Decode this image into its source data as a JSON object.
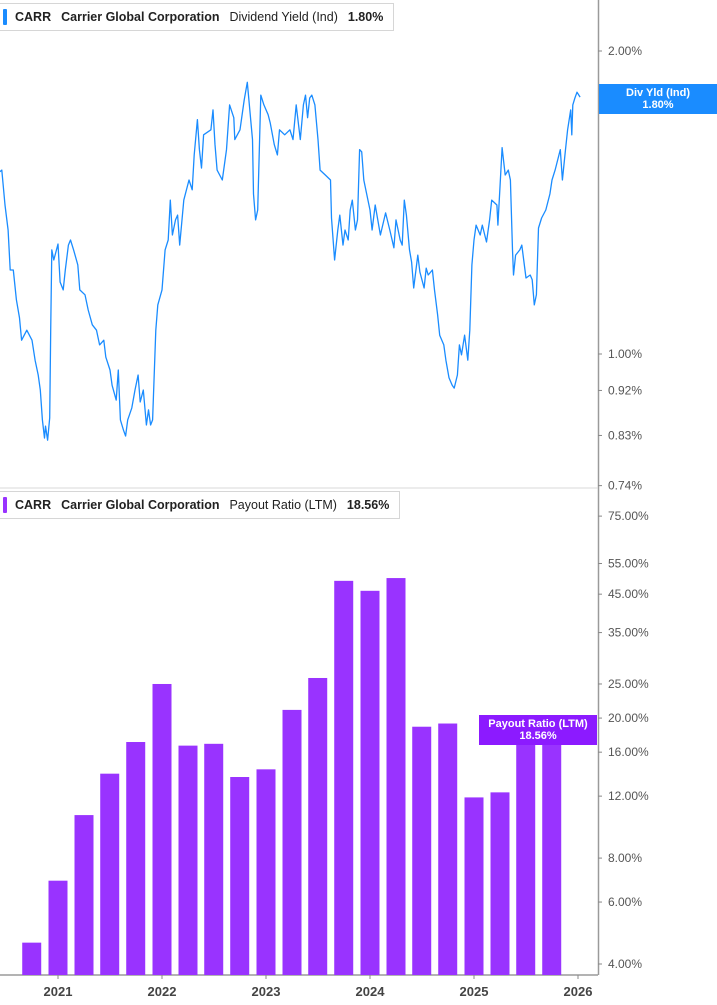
{
  "colors": {
    "yield": "#1a8cff",
    "payout": "#9933ff",
    "payout_flag": "#8c1aff"
  },
  "top_legend": {
    "ticker": "CARR",
    "company": "Carrier Global Corporation",
    "metric": "Dividend Yield (Ind)",
    "value": "1.80%"
  },
  "bottom_legend": {
    "ticker": "CARR",
    "company": "Carrier Global Corporation",
    "metric": "Payout Ratio (LTM)",
    "value": "18.56%"
  },
  "top_flag": {
    "label": "Div Yld (Ind)",
    "value": "1.80%"
  },
  "bottom_flag": {
    "label": "Payout Ratio (LTM)",
    "value": "18.56%"
  },
  "chart_data": [
    {
      "type": "line",
      "series": [
        {
          "name": "Dividend Yield (Ind)",
          "unit": "%"
        }
      ],
      "x_unit": "year",
      "y_scale": "log",
      "ylim": [
        0.74,
        2.1
      ],
      "y_ticks": [
        "2.00%",
        "1.00%",
        "0.92%",
        "0.83%",
        "0.74%"
      ],
      "x_ticks": [
        "2021",
        "2022",
        "2023",
        "2024",
        "2025",
        "2026"
      ],
      "points": [
        [
          2020.44,
          1.517
        ],
        [
          2020.46,
          1.523
        ],
        [
          2020.49,
          1.406
        ],
        [
          2020.52,
          1.328
        ],
        [
          2020.54,
          1.212
        ],
        [
          2020.57,
          1.212
        ],
        [
          2020.6,
          1.132
        ],
        [
          2020.63,
          1.086
        ],
        [
          2020.65,
          1.032
        ],
        [
          2020.7,
          1.056
        ],
        [
          2020.75,
          1.032
        ],
        [
          2020.78,
          0.986
        ],
        [
          2020.81,
          0.953
        ],
        [
          2020.83,
          0.921
        ],
        [
          2020.85,
          0.86
        ],
        [
          2020.87,
          0.825
        ],
        [
          2020.88,
          0.848
        ],
        [
          2020.9,
          0.821
        ],
        [
          2020.92,
          0.864
        ],
        [
          2020.93,
          1.056
        ],
        [
          2020.94,
          1.269
        ],
        [
          2020.96,
          1.24
        ],
        [
          2021.0,
          1.286
        ],
        [
          2021.02,
          1.179
        ],
        [
          2021.05,
          1.158
        ],
        [
          2021.07,
          1.212
        ],
        [
          2021.1,
          1.283
        ],
        [
          2021.12,
          1.298
        ],
        [
          2021.15,
          1.269
        ],
        [
          2021.19,
          1.226
        ],
        [
          2021.21,
          1.158
        ],
        [
          2021.26,
          1.145
        ],
        [
          2021.29,
          1.106
        ],
        [
          2021.33,
          1.069
        ],
        [
          2021.37,
          1.056
        ],
        [
          2021.4,
          1.021
        ],
        [
          2021.44,
          1.032
        ],
        [
          2021.46,
          0.993
        ],
        [
          2021.5,
          0.964
        ],
        [
          2021.52,
          0.931
        ],
        [
          2021.56,
          0.9
        ],
        [
          2021.58,
          0.964
        ],
        [
          2021.6,
          0.86
        ],
        [
          2021.63,
          0.84
        ],
        [
          2021.65,
          0.829
        ],
        [
          2021.67,
          0.86
        ],
        [
          2021.71,
          0.884
        ],
        [
          2021.74,
          0.921
        ],
        [
          2021.77,
          0.953
        ],
        [
          2021.79,
          0.896
        ],
        [
          2021.82,
          0.921
        ],
        [
          2021.85,
          0.85
        ],
        [
          2021.87,
          0.88
        ],
        [
          2021.89,
          0.85
        ],
        [
          2021.91,
          0.86
        ],
        [
          2021.94,
          1.056
        ],
        [
          2021.96,
          1.119
        ],
        [
          2022.0,
          1.158
        ],
        [
          2022.03,
          1.269
        ],
        [
          2022.06,
          1.298
        ],
        [
          2022.08,
          1.422
        ],
        [
          2022.1,
          1.313
        ],
        [
          2022.13,
          1.359
        ],
        [
          2022.15,
          1.374
        ],
        [
          2022.17,
          1.283
        ],
        [
          2022.21,
          1.422
        ],
        [
          2022.26,
          1.489
        ],
        [
          2022.29,
          1.456
        ],
        [
          2022.31,
          1.577
        ],
        [
          2022.34,
          1.709
        ],
        [
          2022.36,
          1.596
        ],
        [
          2022.38,
          1.53
        ],
        [
          2022.4,
          1.651
        ],
        [
          2022.47,
          1.67
        ],
        [
          2022.49,
          1.748
        ],
        [
          2022.51,
          1.614
        ],
        [
          2022.53,
          1.523
        ],
        [
          2022.58,
          1.489
        ],
        [
          2022.62,
          1.596
        ],
        [
          2022.65,
          1.768
        ],
        [
          2022.69,
          1.717
        ],
        [
          2022.7,
          1.633
        ],
        [
          2022.75,
          1.67
        ],
        [
          2022.79,
          1.788
        ],
        [
          2022.82,
          1.862
        ],
        [
          2022.87,
          1.633
        ],
        [
          2022.88,
          1.442
        ],
        [
          2022.9,
          1.359
        ],
        [
          2022.92,
          1.39
        ],
        [
          2022.95,
          1.808
        ],
        [
          2022.98,
          1.768
        ],
        [
          2023.02,
          1.729
        ],
        [
          2023.04,
          1.697
        ],
        [
          2023.08,
          1.614
        ],
        [
          2023.11,
          1.577
        ],
        [
          2023.13,
          1.67
        ],
        [
          2023.18,
          1.651
        ],
        [
          2023.23,
          1.67
        ],
        [
          2023.26,
          1.633
        ],
        [
          2023.29,
          1.768
        ],
        [
          2023.33,
          1.633
        ],
        [
          2023.36,
          1.768
        ],
        [
          2023.38,
          1.808
        ],
        [
          2023.4,
          1.717
        ],
        [
          2023.42,
          1.796
        ],
        [
          2023.44,
          1.808
        ],
        [
          2023.47,
          1.768
        ],
        [
          2023.5,
          1.633
        ],
        [
          2023.52,
          1.523
        ],
        [
          2023.57,
          1.506
        ],
        [
          2023.62,
          1.489
        ],
        [
          2023.63,
          1.365
        ],
        [
          2023.66,
          1.24
        ],
        [
          2023.69,
          1.328
        ],
        [
          2023.71,
          1.374
        ],
        [
          2023.74,
          1.283
        ],
        [
          2023.76,
          1.328
        ],
        [
          2023.79,
          1.298
        ],
        [
          2023.81,
          1.39
        ],
        [
          2023.83,
          1.422
        ],
        [
          2023.86,
          1.328
        ],
        [
          2023.88,
          1.359
        ],
        [
          2023.9,
          1.596
        ],
        [
          2023.92,
          1.588
        ],
        [
          2023.94,
          1.489
        ],
        [
          2023.96,
          1.456
        ],
        [
          2024.0,
          1.39
        ],
        [
          2024.02,
          1.328
        ],
        [
          2024.05,
          1.406
        ],
        [
          2024.1,
          1.313
        ],
        [
          2024.15,
          1.381
        ],
        [
          2024.19,
          1.328
        ],
        [
          2024.23,
          1.275
        ],
        [
          2024.25,
          1.359
        ],
        [
          2024.29,
          1.298
        ],
        [
          2024.31,
          1.283
        ],
        [
          2024.33,
          1.422
        ],
        [
          2024.35,
          1.374
        ],
        [
          2024.38,
          1.269
        ],
        [
          2024.4,
          1.234
        ],
        [
          2024.42,
          1.163
        ],
        [
          2024.46,
          1.254
        ],
        [
          2024.48,
          1.206
        ],
        [
          2024.52,
          1.163
        ],
        [
          2024.54,
          1.217
        ],
        [
          2024.56,
          1.198
        ],
        [
          2024.6,
          1.212
        ],
        [
          2024.62,
          1.158
        ],
        [
          2024.65,
          1.094
        ],
        [
          2024.67,
          1.044
        ],
        [
          2024.71,
          1.021
        ],
        [
          2024.73,
          0.986
        ],
        [
          2024.76,
          0.947
        ],
        [
          2024.79,
          0.931
        ],
        [
          2024.81,
          0.925
        ],
        [
          2024.84,
          0.953
        ],
        [
          2024.86,
          1.021
        ],
        [
          2024.88,
          0.998
        ],
        [
          2024.91,
          1.044
        ],
        [
          2024.94,
          0.986
        ],
        [
          2024.96,
          1.056
        ],
        [
          2024.98,
          1.226
        ],
        [
          2025.0,
          1.298
        ],
        [
          2025.02,
          1.343
        ],
        [
          2025.06,
          1.313
        ],
        [
          2025.08,
          1.343
        ],
        [
          2025.12,
          1.292
        ],
        [
          2025.15,
          1.359
        ],
        [
          2025.17,
          1.422
        ],
        [
          2025.22,
          1.406
        ],
        [
          2025.23,
          1.343
        ],
        [
          2025.25,
          1.466
        ],
        [
          2025.27,
          1.603
        ],
        [
          2025.3,
          1.506
        ],
        [
          2025.33,
          1.523
        ],
        [
          2025.35,
          1.489
        ],
        [
          2025.37,
          1.269
        ],
        [
          2025.38,
          1.198
        ],
        [
          2025.4,
          1.254
        ],
        [
          2025.44,
          1.269
        ],
        [
          2025.46,
          1.283
        ],
        [
          2025.5,
          1.19
        ],
        [
          2025.54,
          1.198
        ],
        [
          2025.56,
          1.185
        ],
        [
          2025.58,
          1.119
        ],
        [
          2025.6,
          1.145
        ],
        [
          2025.62,
          1.334
        ],
        [
          2025.65,
          1.365
        ],
        [
          2025.69,
          1.39
        ],
        [
          2025.73,
          1.442
        ],
        [
          2025.75,
          1.489
        ],
        [
          2025.78,
          1.523
        ],
        [
          2025.81,
          1.566
        ],
        [
          2025.83,
          1.596
        ],
        [
          2025.85,
          1.489
        ],
        [
          2025.88,
          1.596
        ],
        [
          2025.9,
          1.67
        ],
        [
          2025.93,
          1.748
        ],
        [
          2025.94,
          1.651
        ],
        [
          2025.95,
          1.768
        ],
        [
          2025.97,
          1.796
        ],
        [
          2025.99,
          1.82
        ],
        [
          2026.02,
          1.8
        ]
      ]
    },
    {
      "type": "bar",
      "series": [
        {
          "name": "Payout Ratio (LTM)",
          "unit": "%"
        }
      ],
      "y_scale": "log",
      "ylim": [
        3.7,
        82
      ],
      "y_ticks": [
        "75.00%",
        "55.00%",
        "45.00%",
        "35.00%",
        "25.00%",
        "20.00%",
        "16.00%",
        "12.00%",
        "8.00%",
        "6.00%",
        "4.00%"
      ],
      "x_ticks": [
        "2021",
        "2022",
        "2023",
        "2024",
        "2025",
        "2026"
      ],
      "categories": [
        "2020-09-30",
        "2020-12-31",
        "2021-03-31",
        "2021-06-30",
        "2021-09-30",
        "2021-12-31",
        "2022-03-31",
        "2022-06-30",
        "2022-09-30",
        "2022-12-31",
        "2023-03-31",
        "2023-06-30",
        "2023-09-30",
        "2023-12-31",
        "2024-03-31",
        "2024-06-30",
        "2024-09-30",
        "2024-12-31",
        "2025-03-31",
        "2025-06-30",
        "2025-09-30"
      ],
      "values": [
        4.6,
        6.9,
        10.6,
        13.9,
        17.1,
        25.0,
        16.7,
        16.9,
        13.6,
        14.3,
        21.1,
        26.0,
        49.1,
        46.0,
        50.0,
        18.9,
        19.3,
        11.9,
        12.3,
        18.3,
        18.56
      ]
    }
  ]
}
